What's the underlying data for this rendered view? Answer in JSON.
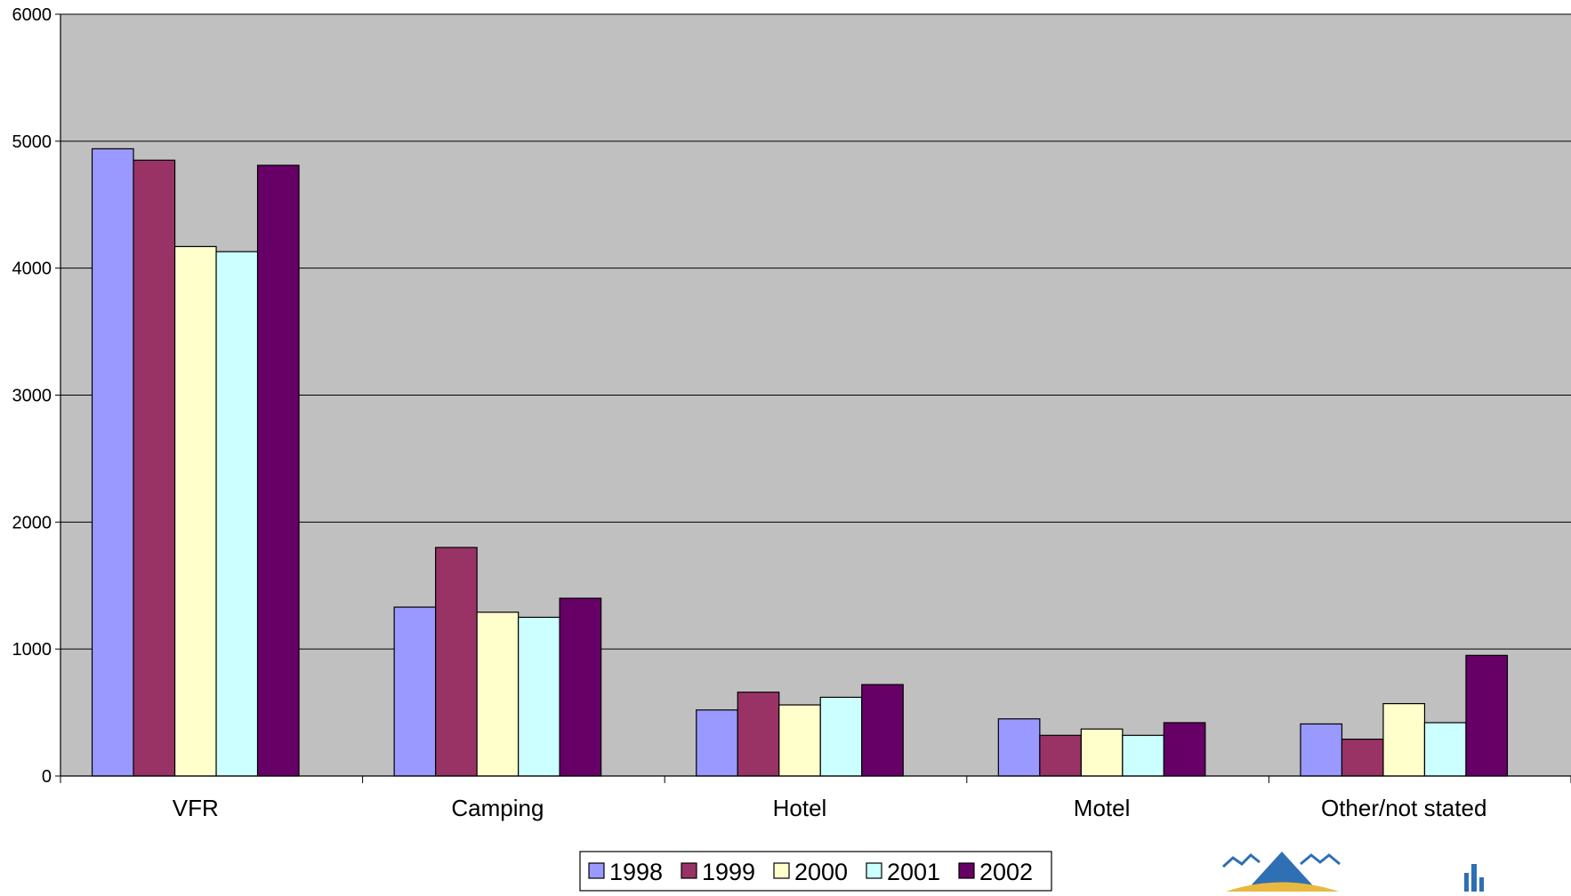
{
  "chart_data": {
    "type": "bar",
    "title": "",
    "xlabel": "",
    "ylabel": "",
    "categories": [
      "VFR",
      "Camping",
      "Hotel",
      "Motel",
      "Other/not stated"
    ],
    "series": [
      {
        "name": "1998",
        "color": "#9999ff",
        "values": [
          4940,
          1330,
          520,
          450,
          410
        ]
      },
      {
        "name": "1999",
        "color": "#993366",
        "values": [
          4850,
          1800,
          660,
          320,
          290
        ]
      },
      {
        "name": "2000",
        "color": "#ffffcc",
        "values": [
          4170,
          1290,
          560,
          370,
          570
        ]
      },
      {
        "name": "2001",
        "color": "#ccffff",
        "values": [
          4130,
          1250,
          620,
          320,
          420
        ]
      },
      {
        "name": "2002",
        "color": "#660066",
        "values": [
          4810,
          1400,
          720,
          420,
          950
        ]
      }
    ],
    "ylim": [
      0,
      6000
    ],
    "yticks": [
      "0",
      "1000",
      "2000",
      "3000",
      "4000",
      "5000",
      "6000"
    ],
    "plot_background": "#c0c0c0",
    "grid": true,
    "legend_position": "bottom-center"
  },
  "decorations": {
    "logo_icons": [
      "mountain-logo-icon",
      "building-logo-icon"
    ]
  }
}
